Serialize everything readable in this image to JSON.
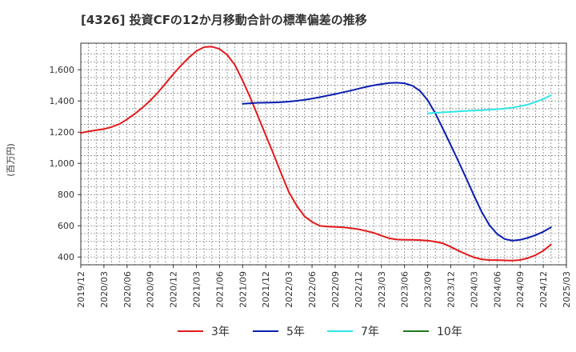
{
  "chart_data": {
    "type": "line",
    "title": "[4326]  投資CFの12か月移動合計の標準偏差の推移",
    "ylabel": "(百万円)",
    "ylim": [
      350,
      1770
    ],
    "yticks": [
      400,
      600,
      800,
      1000,
      1200,
      1400,
      1600
    ],
    "ytick_labels": [
      "400",
      "600",
      "800",
      "1,000",
      "1,200",
      "1,400",
      "1,600"
    ],
    "xlim": [
      "2019-12",
      "2025-03"
    ],
    "xticks": [
      "2019/12",
      "2020/03",
      "2020/06",
      "2020/09",
      "2020/12",
      "2021/03",
      "2021/06",
      "2021/09",
      "2021/12",
      "2022/03",
      "2022/06",
      "2022/09",
      "2022/12",
      "2023/03",
      "2023/06",
      "2023/09",
      "2023/12",
      "2024/03",
      "2024/06",
      "2024/09",
      "2024/12",
      "2025/03"
    ],
    "grid": true,
    "legend_position": "bottom",
    "series": [
      {
        "name": "3年",
        "color": "#e41a1c",
        "points": [
          [
            "2019-12",
            1195
          ],
          [
            "2020-01",
            1205
          ],
          [
            "2020-02",
            1213
          ],
          [
            "2020-03",
            1220
          ],
          [
            "2020-04",
            1233
          ],
          [
            "2020-05",
            1252
          ],
          [
            "2020-06",
            1282
          ],
          [
            "2020-07",
            1317
          ],
          [
            "2020-08",
            1357
          ],
          [
            "2020-09",
            1402
          ],
          [
            "2020-10",
            1454
          ],
          [
            "2020-11",
            1512
          ],
          [
            "2020-12",
            1572
          ],
          [
            "2021-01",
            1627
          ],
          [
            "2021-02",
            1677
          ],
          [
            "2021-03",
            1720
          ],
          [
            "2021-04",
            1745
          ],
          [
            "2021-05",
            1748
          ],
          [
            "2021-06",
            1733
          ],
          [
            "2021-07",
            1695
          ],
          [
            "2021-08",
            1630
          ],
          [
            "2021-09",
            1530
          ],
          [
            "2021-10",
            1420
          ],
          [
            "2021-11",
            1300
          ],
          [
            "2021-12",
            1180
          ],
          [
            "2022-01",
            1060
          ],
          [
            "2022-02",
            935
          ],
          [
            "2022-03",
            815
          ],
          [
            "2022-04",
            730
          ],
          [
            "2022-05",
            662
          ],
          [
            "2022-06",
            625
          ],
          [
            "2022-07",
            600
          ],
          [
            "2022-08",
            595
          ],
          [
            "2022-09",
            593
          ],
          [
            "2022-10",
            590
          ],
          [
            "2022-11",
            585
          ],
          [
            "2022-12",
            578
          ],
          [
            "2023-01",
            567
          ],
          [
            "2023-02",
            555
          ],
          [
            "2023-03",
            537
          ],
          [
            "2023-04",
            520
          ],
          [
            "2023-05",
            512
          ],
          [
            "2023-06",
            510
          ],
          [
            "2023-07",
            510
          ],
          [
            "2023-08",
            508
          ],
          [
            "2023-09",
            505
          ],
          [
            "2023-10",
            498
          ],
          [
            "2023-11",
            487
          ],
          [
            "2023-12",
            465
          ],
          [
            "2024-01",
            440
          ],
          [
            "2024-02",
            418
          ],
          [
            "2024-03",
            398
          ],
          [
            "2024-04",
            385
          ],
          [
            "2024-05",
            380
          ],
          [
            "2024-06",
            380
          ],
          [
            "2024-07",
            378
          ],
          [
            "2024-08",
            377
          ],
          [
            "2024-09",
            381
          ],
          [
            "2024-10",
            393
          ],
          [
            "2024-11",
            412
          ],
          [
            "2024-12",
            440
          ],
          [
            "2025-01",
            480
          ]
        ]
      },
      {
        "name": "5年",
        "color": "#0a1fb2",
        "points": [
          [
            "2021-09",
            1382
          ],
          [
            "2021-10",
            1385
          ],
          [
            "2021-11",
            1388
          ],
          [
            "2021-12",
            1389
          ],
          [
            "2022-01",
            1390
          ],
          [
            "2022-02",
            1392
          ],
          [
            "2022-03",
            1396
          ],
          [
            "2022-04",
            1401
          ],
          [
            "2022-05",
            1407
          ],
          [
            "2022-06",
            1415
          ],
          [
            "2022-07",
            1424
          ],
          [
            "2022-08",
            1434
          ],
          [
            "2022-09",
            1444
          ],
          [
            "2022-10",
            1455
          ],
          [
            "2022-11",
            1466
          ],
          [
            "2022-12",
            1478
          ],
          [
            "2023-01",
            1490
          ],
          [
            "2023-02",
            1500
          ],
          [
            "2023-03",
            1508
          ],
          [
            "2023-04",
            1515
          ],
          [
            "2023-05",
            1517
          ],
          [
            "2023-06",
            1513
          ],
          [
            "2023-07",
            1498
          ],
          [
            "2023-08",
            1465
          ],
          [
            "2023-09",
            1405
          ],
          [
            "2023-10",
            1320
          ],
          [
            "2023-11",
            1220
          ],
          [
            "2023-12",
            1117
          ],
          [
            "2024-01",
            1012
          ],
          [
            "2024-02",
            905
          ],
          [
            "2024-03",
            795
          ],
          [
            "2024-04",
            690
          ],
          [
            "2024-05",
            605
          ],
          [
            "2024-06",
            548
          ],
          [
            "2024-07",
            515
          ],
          [
            "2024-08",
            505
          ],
          [
            "2024-09",
            510
          ],
          [
            "2024-10",
            523
          ],
          [
            "2024-11",
            540
          ],
          [
            "2024-12",
            562
          ],
          [
            "2025-01",
            590
          ]
        ]
      },
      {
        "name": "7年",
        "color": "#2ee6e6",
        "points": [
          [
            "2023-09",
            1320
          ],
          [
            "2023-10",
            1324
          ],
          [
            "2023-11",
            1327
          ],
          [
            "2023-12",
            1330
          ],
          [
            "2024-01",
            1333
          ],
          [
            "2024-02",
            1336
          ],
          [
            "2024-03",
            1339
          ],
          [
            "2024-04",
            1341
          ],
          [
            "2024-05",
            1344
          ],
          [
            "2024-06",
            1347
          ],
          [
            "2024-07",
            1351
          ],
          [
            "2024-08",
            1357
          ],
          [
            "2024-09",
            1366
          ],
          [
            "2024-10",
            1377
          ],
          [
            "2024-11",
            1393
          ],
          [
            "2024-12",
            1412
          ],
          [
            "2025-01",
            1437
          ]
        ]
      },
      {
        "name": "10年",
        "color": "#1e7a1e",
        "points": []
      }
    ]
  }
}
